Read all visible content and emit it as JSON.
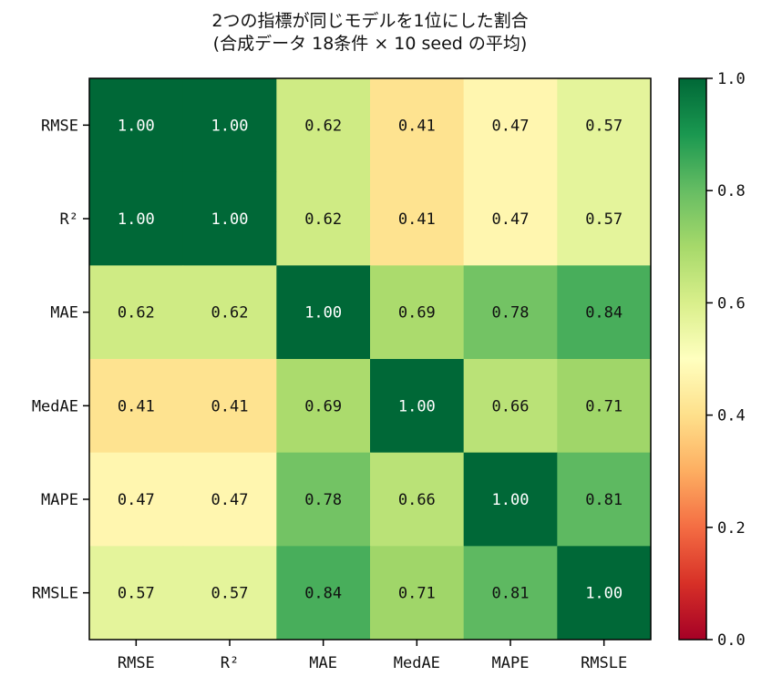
{
  "chart_data": {
    "type": "heatmap",
    "title_line1": "2つの指標が同じモデルを1位にした割合",
    "title_line2": "(合成データ 18条件 × 10 seed の平均)",
    "row_labels": [
      "RMSE",
      "R²",
      "MAE",
      "MedAE",
      "MAPE",
      "RMSLE"
    ],
    "col_labels": [
      "RMSE",
      "R²",
      "MAE",
      "MedAE",
      "MAPE",
      "RMSLE"
    ],
    "values": [
      [
        1.0,
        1.0,
        0.62,
        0.41,
        0.47,
        0.57
      ],
      [
        1.0,
        1.0,
        0.62,
        0.41,
        0.47,
        0.57
      ],
      [
        0.62,
        0.62,
        1.0,
        0.69,
        0.78,
        0.84
      ],
      [
        0.41,
        0.41,
        0.69,
        1.0,
        0.66,
        0.71
      ],
      [
        0.47,
        0.47,
        0.78,
        0.66,
        1.0,
        0.81
      ],
      [
        0.57,
        0.57,
        0.84,
        0.71,
        0.81,
        1.0
      ]
    ],
    "value_format": "2 decimals",
    "colormap": "RdYlGn",
    "vmin": 0.0,
    "vmax": 1.0,
    "colorbar_ticks": [
      "0.0",
      "0.2",
      "0.4",
      "0.6",
      "0.8",
      "1.0"
    ],
    "grid": false,
    "colors": {
      "low": "#a50026",
      "mid": "#ffffbf",
      "high": "#006837",
      "text_dark": "#111111",
      "text_light": "#ffffff"
    }
  }
}
